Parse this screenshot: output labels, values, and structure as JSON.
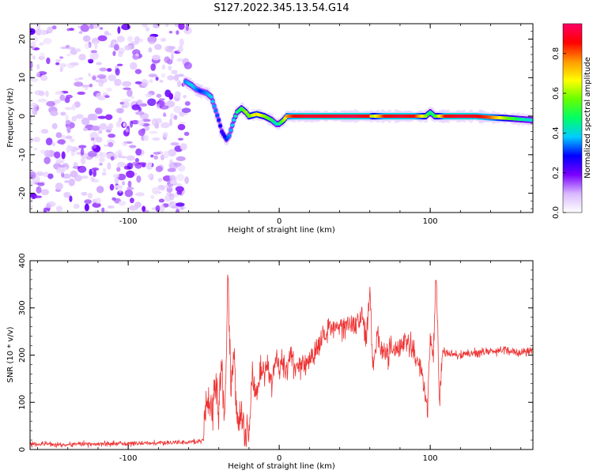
{
  "title": "S127.2022.345.13.54.G14",
  "chart_data": [
    {
      "type": "heatmap",
      "xlabel": "Height of straight line (km)",
      "ylabel": "Frequency (Hz)",
      "xlim": [
        -165,
        168
      ],
      "ylim": [
        -25,
        24
      ],
      "xticks": [
        -100,
        0,
        100
      ],
      "yticks": [
        -20,
        -10,
        0,
        10,
        20
      ],
      "noise_region_end": -60,
      "colorbar": {
        "label": "Normalized spectral amplitude",
        "range": [
          0,
          0.95
        ],
        "ticks": [
          0.0,
          0.2,
          0.4,
          0.6,
          0.8
        ],
        "colors": [
          "#ffffff",
          "#d9b8ff",
          "#7a00ff",
          "#0000ff",
          "#00ccff",
          "#00ff66",
          "#66ff00",
          "#ffff00",
          "#ff9900",
          "#ff0000",
          "#ff0066"
        ]
      },
      "ridge": {
        "x": [
          -62,
          -58,
          -55,
          -52,
          -48,
          -45,
          -40,
          -38,
          -35,
          -33,
          -30,
          -28,
          -25,
          -22,
          -20,
          -15,
          -10,
          -5,
          -2,
          0,
          3,
          5,
          10,
          20,
          30,
          40,
          50,
          60,
          62,
          70,
          80,
          90,
          97,
          100,
          103,
          110,
          120,
          130,
          140,
          150,
          160,
          167
        ],
        "y": [
          9,
          8,
          7,
          6.5,
          6,
          5,
          -1,
          -4,
          -6,
          -5,
          -1,
          1,
          2,
          1,
          0,
          0.5,
          0,
          -1,
          -2,
          -2,
          -1,
          0,
          0,
          0,
          0,
          0,
          0,
          0,
          0,
          0,
          0,
          0,
          0,
          1,
          0,
          0,
          0,
          0,
          -0.3,
          -0.5,
          -0.8,
          -1
        ],
        "amplitude": [
          0.35,
          0.4,
          0.35,
          0.3,
          0.35,
          0.4,
          0.3,
          0.25,
          0.3,
          0.35,
          0.4,
          0.45,
          0.5,
          0.6,
          0.55,
          0.7,
          0.6,
          0.5,
          0.4,
          0.45,
          0.6,
          0.75,
          0.85,
          0.9,
          0.88,
          0.9,
          0.92,
          0.85,
          0.6,
          0.85,
          0.9,
          0.85,
          0.6,
          0.45,
          0.5,
          0.85,
          0.9,
          0.88,
          0.8,
          0.6,
          0.45,
          0.4
        ]
      }
    },
    {
      "type": "line",
      "xlabel": "Height of straight line (km)",
      "ylabel": "SNR (10 * v/v)",
      "xlim": [
        -165,
        168
      ],
      "ylim": [
        0,
        400
      ],
      "xticks": [
        -100,
        0,
        100
      ],
      "yticks": [
        0,
        100,
        200,
        300,
        400
      ],
      "color": "#ee3333",
      "series": [
        {
          "x": [
            -165,
            -140,
            -120,
            -100,
            -80,
            -60,
            -50,
            -48,
            -45,
            -42,
            -40,
            -38,
            -36,
            -34,
            -32,
            -30,
            -28,
            -25,
            -22,
            -20,
            -18,
            -15,
            -12,
            -10,
            -8,
            -5,
            -2,
            0,
            2,
            5,
            8,
            10,
            15,
            20,
            25,
            30,
            35,
            40,
            45,
            50,
            55,
            58,
            60,
            62,
            65,
            70,
            75,
            80,
            85,
            90,
            95,
            98,
            100,
            102,
            104,
            106,
            108,
            110,
            120,
            130,
            140,
            150,
            160,
            168
          ],
          "y": [
            12,
            10,
            12,
            12,
            14,
            15,
            18,
            120,
            60,
            140,
            70,
            180,
            50,
            380,
            120,
            200,
            60,
            90,
            20,
            40,
            160,
            120,
            180,
            150,
            190,
            130,
            200,
            170,
            190,
            160,
            210,
            170,
            180,
            190,
            220,
            240,
            255,
            260,
            270,
            265,
            280,
            240,
            330,
            180,
            240,
            200,
            210,
            220,
            230,
            200,
            150,
            80,
            230,
            200,
            370,
            100,
            205,
            205,
            200,
            205,
            208,
            210,
            205,
            212
          ]
        }
      ]
    }
  ]
}
